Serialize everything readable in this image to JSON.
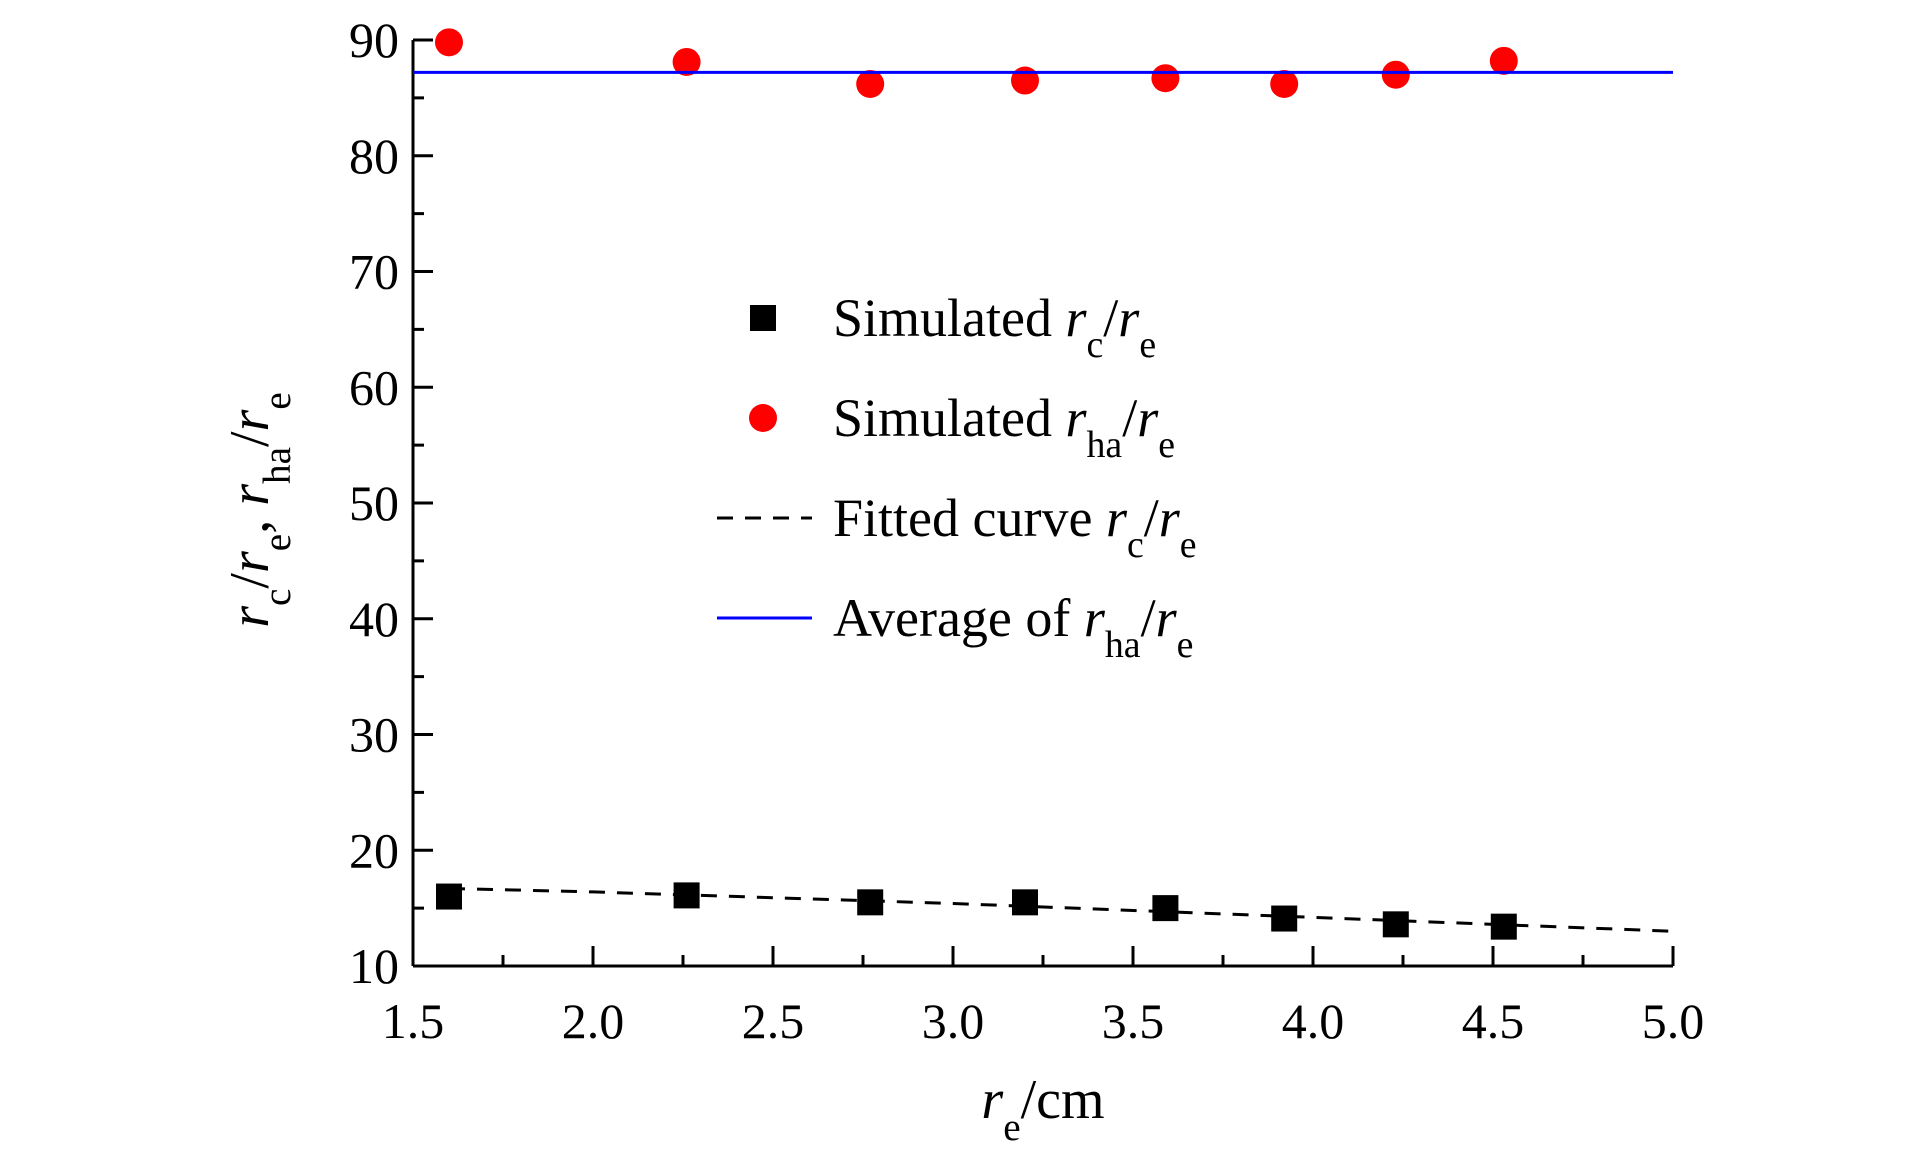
{
  "chart_data": {
    "type": "scatter",
    "xlabel": {
      "main": "r",
      "sub": "e",
      "rest": "/cm"
    },
    "ylabel": {
      "parts": [
        [
          "r",
          "c"
        ],
        [
          "/",
          ""
        ],
        [
          "r",
          "e"
        ],
        [
          ", ",
          ""
        ],
        [
          "r",
          "ha"
        ],
        [
          "/",
          ""
        ],
        [
          "r",
          "e"
        ]
      ]
    },
    "xlim": [
      1.5,
      5.0
    ],
    "ylim": [
      10,
      90
    ],
    "x_ticks": [
      "1.5",
      "2.0",
      "2.5",
      "3.0",
      "3.5",
      "4.0",
      "4.5",
      "5.0"
    ],
    "y_ticks": [
      "10",
      "20",
      "30",
      "40",
      "50",
      "60",
      "70",
      "80",
      "90"
    ],
    "grid": false,
    "legend_position": "center",
    "colors": {
      "rc": "#000000",
      "rha": "#ff0000",
      "fit": "#000000",
      "avg": "#0000ff"
    },
    "series": [
      {
        "name": "Simulated rc/re",
        "legend": {
          "prefix": "Simulated ",
          "var": "r",
          "sub": "c",
          "slash": "/",
          "var2": "r",
          "sub2": "e"
        },
        "marker": "square",
        "x": [
          1.6,
          2.26,
          2.77,
          3.2,
          3.59,
          3.92,
          4.23,
          4.53
        ],
        "y": [
          16.0,
          16.1,
          15.5,
          15.5,
          15.0,
          14.1,
          13.6,
          13.4
        ]
      },
      {
        "name": "Simulated rha/re",
        "legend": {
          "prefix": "Simulated ",
          "var": "r",
          "sub": "ha",
          "slash": "/",
          "var2": "r",
          "sub2": "e"
        },
        "marker": "circle",
        "x": [
          1.6,
          2.26,
          2.77,
          3.2,
          3.59,
          3.92,
          4.23,
          4.53
        ],
        "y": [
          89.8,
          88.1,
          86.2,
          86.5,
          86.7,
          86.2,
          87.0,
          88.2
        ]
      },
      {
        "name": "Fitted curve rc/re",
        "legend": {
          "prefix": "Fitted curve ",
          "var": "r",
          "sub": "c",
          "slash": "/",
          "var2": "r",
          "sub2": "e"
        },
        "line": "dashed",
        "x": [
          1.6,
          2.0,
          2.5,
          3.0,
          3.5,
          4.0,
          4.5,
          5.0
        ],
        "y": [
          16.7,
          16.4,
          15.9,
          15.4,
          14.8,
          14.2,
          13.6,
          13.0
        ]
      },
      {
        "name": "Average of rha/re",
        "legend": {
          "prefix": "Average of ",
          "var": "r",
          "sub": "ha",
          "slash": "/",
          "var2": "r",
          "sub2": "e"
        },
        "line": "solid",
        "x": [
          1.5,
          5.0
        ],
        "y": [
          87.2,
          87.2
        ]
      }
    ]
  }
}
